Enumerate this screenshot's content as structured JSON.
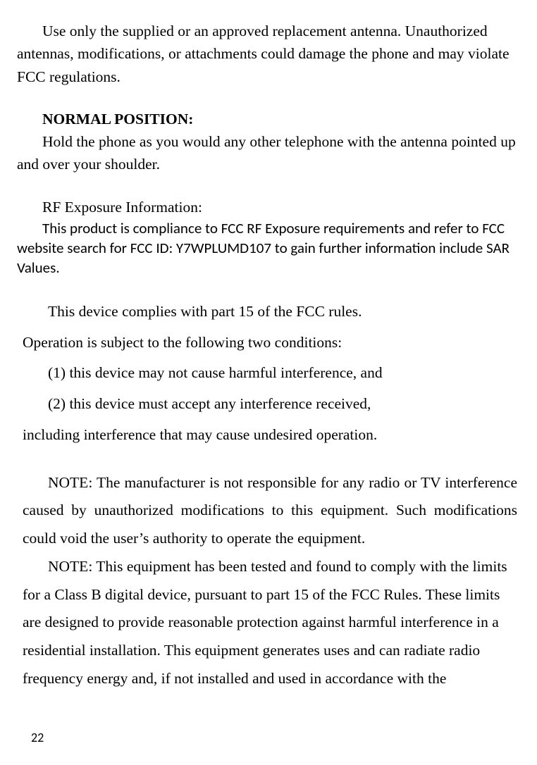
{
  "page": {
    "text_color": "#000000",
    "background_color": "#ffffff",
    "serif_font": "Georgia",
    "sans_font": "Calibri",
    "base_fontsize": 21.5,
    "sans_fontsize": 21,
    "page_number_fontsize": 18
  },
  "p1": "Use only the supplied or an approved replacement antenna. Unauthorized antennas, modifications, or attachments could damage the phone and may violate FCC regulations.",
  "h1": "NORMAL POSITION:",
  "p2": "Hold the phone as you would any other telephone with the antenna pointed up and over your shoulder.",
  "h2": "RF Exposure Information:",
  "p3": "This product is compliance to FCC RF Exposure requirements and refer to FCC website search for FCC ID: Y7WPLUMD107 to gain further information include SAR Values.",
  "p4": "This device complies with part 15 of the FCC rules.",
  "p4b": "Operation is subject to the following two conditions:",
  "li1": "(1) this device may not cause harmful interference, and",
  "li2": "(2) this device must accept any interference received,",
  "p5": "including interference that may cause undesired operation.",
  "p6": "NOTE: The manufacturer is not responsible for any radio or TV interference caused by unauthorized modifications to this equipment. Such modifications could void the user’s authority to operate the equipment.",
  "p7": "NOTE: This equipment has been tested and found to comply with the limits for a Class B digital device, pursuant to part 15 of the FCC Rules. These limits are designed to provide reasonable protection against harmful interference in a residential installation. This equipment generates uses and can radiate radio frequency energy and, if not installed and used in accordance with the",
  "page_number": "22"
}
